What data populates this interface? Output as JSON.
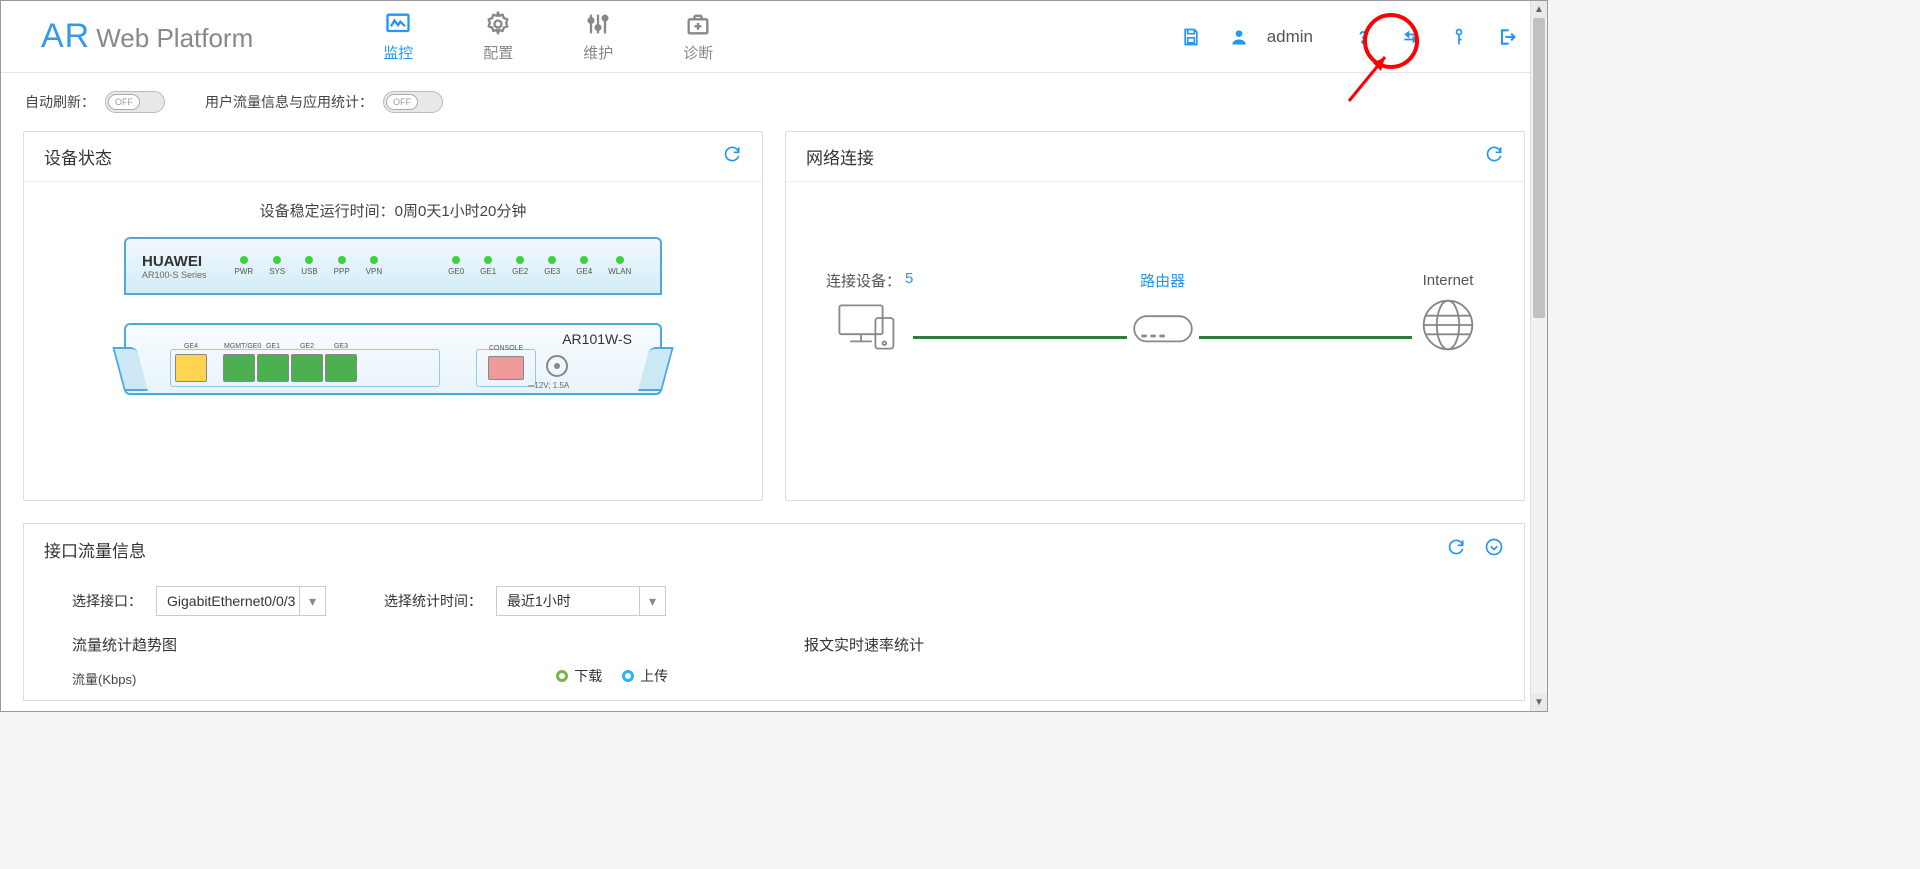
{
  "logo": {
    "ar": "AR",
    "sub": "Web Platform"
  },
  "nav": {
    "monitor": "监控",
    "config": "配置",
    "maintain": "维护",
    "diagnose": "诊断"
  },
  "header": {
    "username": "admin"
  },
  "toggles": {
    "auto_refresh_label": "自动刷新：",
    "auto_refresh_state": "OFF",
    "user_traffic_label": "用户流量信息与应用统计：",
    "user_traffic_state": "OFF"
  },
  "device_card": {
    "title": "设备状态",
    "uptime_label": "设备稳定运行时间：",
    "uptime_value": "0周0天1小时20分钟",
    "brand": "HUAWEI",
    "series": "AR100-S Series",
    "back_leds_a": [
      "PWR",
      "SYS",
      "USB",
      "PPP",
      "VPN"
    ],
    "back_leds_b": [
      "GE0",
      "GE1",
      "GE2",
      "GE3",
      "GE4",
      "WLAN"
    ],
    "model": "AR101W-S",
    "front_ports": [
      {
        "label": "GE4",
        "cls": "y"
      },
      {
        "label": "MGMT/GE0",
        "cls": ""
      },
      {
        "label": "GE1",
        "cls": ""
      },
      {
        "label": "GE2",
        "cls": ""
      },
      {
        "label": "GE3",
        "cls": ""
      }
    ],
    "console_label": "CONSOLE",
    "power_label": "⎓12V; 1.5A"
  },
  "net_card": {
    "title": "网络连接",
    "conn_devices_label": "连接设备：",
    "conn_devices_count": "5",
    "router_label": "路由器",
    "internet_label": "Internet"
  },
  "traffic_card": {
    "title": "接口流量信息",
    "select_if_label": "选择接口：",
    "select_if_value": "GigabitEthernet0/0/3",
    "select_time_label": "选择统计时间：",
    "select_time_value": "最近1小时",
    "trend_title": "流量统计趋势图",
    "rate_title": "报文实时速率统计",
    "legend_down": "下载",
    "legend_up": "上传",
    "yaxis": "流量(Kbps)",
    "legend_down_color": "#7cb342",
    "legend_up_color": "#29b6f6"
  }
}
